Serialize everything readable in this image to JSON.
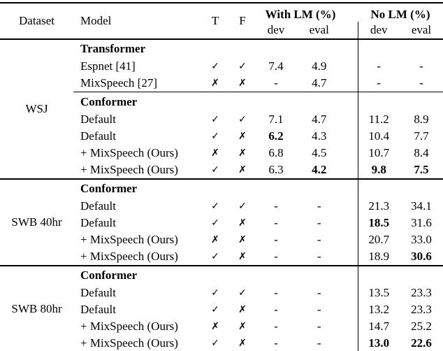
{
  "table": {
    "header": {
      "dataset": "Dataset",
      "model": "Model",
      "t": "T",
      "f": "F",
      "with_lm": "With LM (%)",
      "no_lm": "No LM (%)",
      "sub": [
        "dev",
        "eval",
        "dev",
        "eval"
      ]
    },
    "sections": [
      {
        "dataset": "WSJ",
        "groups": [
          {
            "title": "Transformer",
            "rows": [
              {
                "model": "Espnet [41]",
                "t": "✓",
                "f": "✓",
                "values": [
                  "7.4",
                  "4.9",
                  "-",
                  "-"
                ],
                "bold": [
                  false,
                  false,
                  false,
                  false
                ]
              },
              {
                "model": "MixSpeech [27]",
                "t": "✗",
                "f": "✗",
                "values": [
                  "-",
                  "4.7",
                  "-",
                  "-"
                ],
                "bold": [
                  false,
                  false,
                  false,
                  false
                ]
              }
            ]
          },
          {
            "title": "Conformer",
            "rows": [
              {
                "model": "Default",
                "t": "✓",
                "f": "✓",
                "values": [
                  "7.1",
                  "4.7",
                  "11.2",
                  "8.9"
                ],
                "bold": [
                  false,
                  false,
                  false,
                  false
                ]
              },
              {
                "model": "Default",
                "t": "✓",
                "f": "✗",
                "values": [
                  "6.2",
                  "4.3",
                  "10.4",
                  "7.7"
                ],
                "bold": [
                  true,
                  false,
                  false,
                  false
                ]
              },
              {
                "model": "+ MixSpeech (Ours)",
                "t": "✗",
                "f": "✗",
                "values": [
                  "6.8",
                  "4.5",
                  "10.7",
                  "8.4"
                ],
                "bold": [
                  false,
                  false,
                  false,
                  false
                ]
              },
              {
                "model": "+ MixSpeech (Ours)",
                "t": "✓",
                "f": "✗",
                "values": [
                  "6.3",
                  "4.2",
                  "9.8",
                  "7.5"
                ],
                "bold": [
                  false,
                  true,
                  true,
                  true
                ]
              }
            ]
          }
        ]
      },
      {
        "dataset": "SWB 40hr",
        "groups": [
          {
            "title": "Conformer",
            "rows": [
              {
                "model": "Default",
                "t": "✓",
                "f": "✓",
                "values": [
                  "-",
                  "-",
                  "21.3",
                  "34.1"
                ],
                "bold": [
                  false,
                  false,
                  false,
                  false
                ]
              },
              {
                "model": "Default",
                "t": "✓",
                "f": "✗",
                "values": [
                  "-",
                  "-",
                  "18.5",
                  "31.6"
                ],
                "bold": [
                  false,
                  false,
                  true,
                  false
                ]
              },
              {
                "model": "+ MixSpeech (Ours)",
                "t": "✗",
                "f": "✗",
                "values": [
                  "-",
                  "-",
                  "20.7",
                  "33.0"
                ],
                "bold": [
                  false,
                  false,
                  false,
                  false
                ]
              },
              {
                "model": "+ MixSpeech (Ours)",
                "t": "✓",
                "f": "✗",
                "values": [
                  "-",
                  "-",
                  "18.9",
                  "30.6"
                ],
                "bold": [
                  false,
                  false,
                  false,
                  true
                ]
              }
            ]
          }
        ]
      },
      {
        "dataset": "SWB 80hr",
        "groups": [
          {
            "title": "Conformer",
            "rows": [
              {
                "model": "Default",
                "t": "✓",
                "f": "✓",
                "values": [
                  "-",
                  "-",
                  "13.5",
                  "23.3"
                ],
                "bold": [
                  false,
                  false,
                  false,
                  false
                ]
              },
              {
                "model": "Default",
                "t": "✓",
                "f": "✗",
                "values": [
                  "-",
                  "-",
                  "13.2",
                  "23.3"
                ],
                "bold": [
                  false,
                  false,
                  false,
                  false
                ]
              },
              {
                "model": "+ MixSpeech (Ours)",
                "t": "✗",
                "f": "✗",
                "values": [
                  "-",
                  "-",
                  "14.7",
                  "25.2"
                ],
                "bold": [
                  false,
                  false,
                  false,
                  false
                ]
              },
              {
                "model": "+ MixSpeech (Ours)",
                "t": "✓",
                "f": "✗",
                "values": [
                  "-",
                  "-",
                  "13.0",
                  "22.6"
                ],
                "bold": [
                  false,
                  false,
                  true,
                  true
                ]
              }
            ]
          }
        ]
      }
    ]
  }
}
